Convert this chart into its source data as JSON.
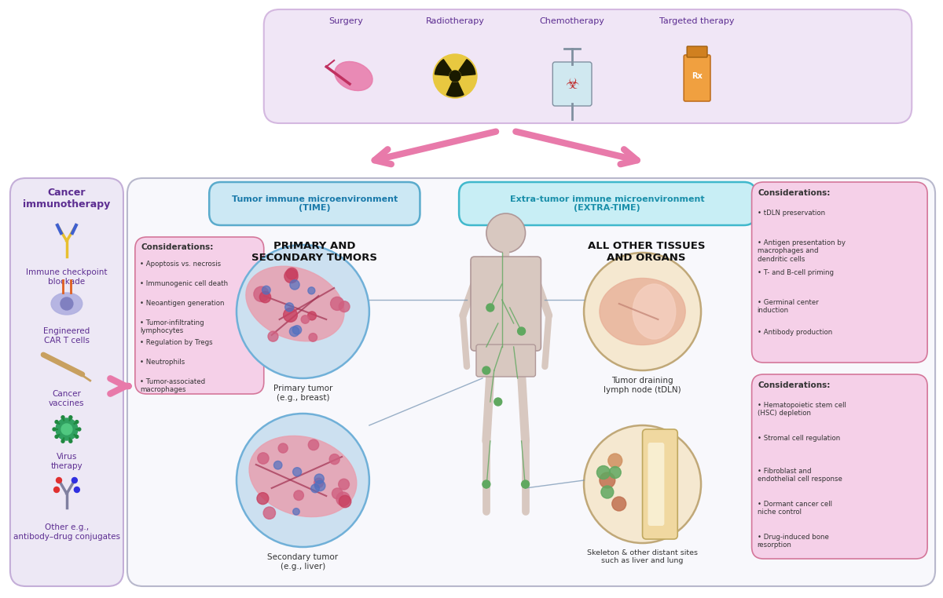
{
  "bg_color": "#ffffff",
  "top_box_color": "#f0e6f6",
  "top_box_border": "#d4b8e0",
  "top_treatments": [
    "Surgery",
    "Radiotherapy",
    "Chemotherapy",
    "Targeted therapy"
  ],
  "arrow_color": "#e87aaa",
  "left_box_bg": "#ede8f5",
  "left_box_border": "#c4aed8",
  "left_title": "Cancer\nimmunotherapy",
  "left_title_color": "#5c2d91",
  "left_items": [
    "Immune checkpoint\nblockade",
    "Engineered\nCAR T cells",
    "Cancer\nvaccines",
    "Virus\ntherapy",
    "Other e.g.,\nantibody–drug conjugates"
  ],
  "left_item_color": "#5c2d91",
  "time_box_bg": "#cce8f4",
  "time_box_border": "#5aabcc",
  "time_box_text": "Tumor immune microenvironment\n(TIME)",
  "time_box_color": "#1a7aaa",
  "time_subtitle": "PRIMARY AND\nSECONDARY TUMORS",
  "extratime_box_bg": "#c8eef5",
  "extratime_box_border": "#40b8cc",
  "extratime_box_text": "Extra-tumor immune microenvironment\n(EXTRA-TIME)",
  "extratime_box_color": "#1a8faa",
  "extratime_subtitle": "ALL OTHER TISSUES\nAND ORGANS",
  "considerations_bg": "#f5d0e8",
  "considerations_border": "#d4779a",
  "considerations_left_title": "Considerations:",
  "considerations_left_items": [
    "Apoptosis vs. necrosis",
    "Immunogenic cell death",
    "Neoantigen generation",
    "Tumor-infiltrating\nlymphocytes",
    "Regulation by Tregs",
    "Neutrophils",
    "Tumor-associated\nmacrophages"
  ],
  "considerations_right1_title": "Considerations:",
  "considerations_right1_items": [
    "tDLN preservation",
    "Antigen presentation by\nmacrophages and\ndendritic cells",
    "T- and B-cell priming",
    "Germinal center\ninduction",
    "Antibody production"
  ],
  "considerations_right2_title": "Considerations:",
  "considerations_right2_items": [
    "Hematopoietic stem cell\n(HSC) depletion",
    "Stromal cell regulation",
    "Fibroblast and\nendothelial cell response",
    "Dormant cancer cell\nniche control",
    "Drug-induced bone\nresorption"
  ],
  "primary_tumor_label": "Primary tumor\n(e.g., breast)",
  "secondary_tumor_label": "Secondary tumor\n(e.g., liver)",
  "lymph_node_label": "Tumor draining\nlymph node (tDLN)",
  "skeleton_label": "Skeleton & other distant sites\nsuch as liver and lung",
  "label_color": "#333333",
  "circle_time_color": "#cce0f0",
  "circle_extratime_color": "#f5e8d0",
  "main_box_bg": "#f8f8fc",
  "main_box_border": "#b8b8cc"
}
